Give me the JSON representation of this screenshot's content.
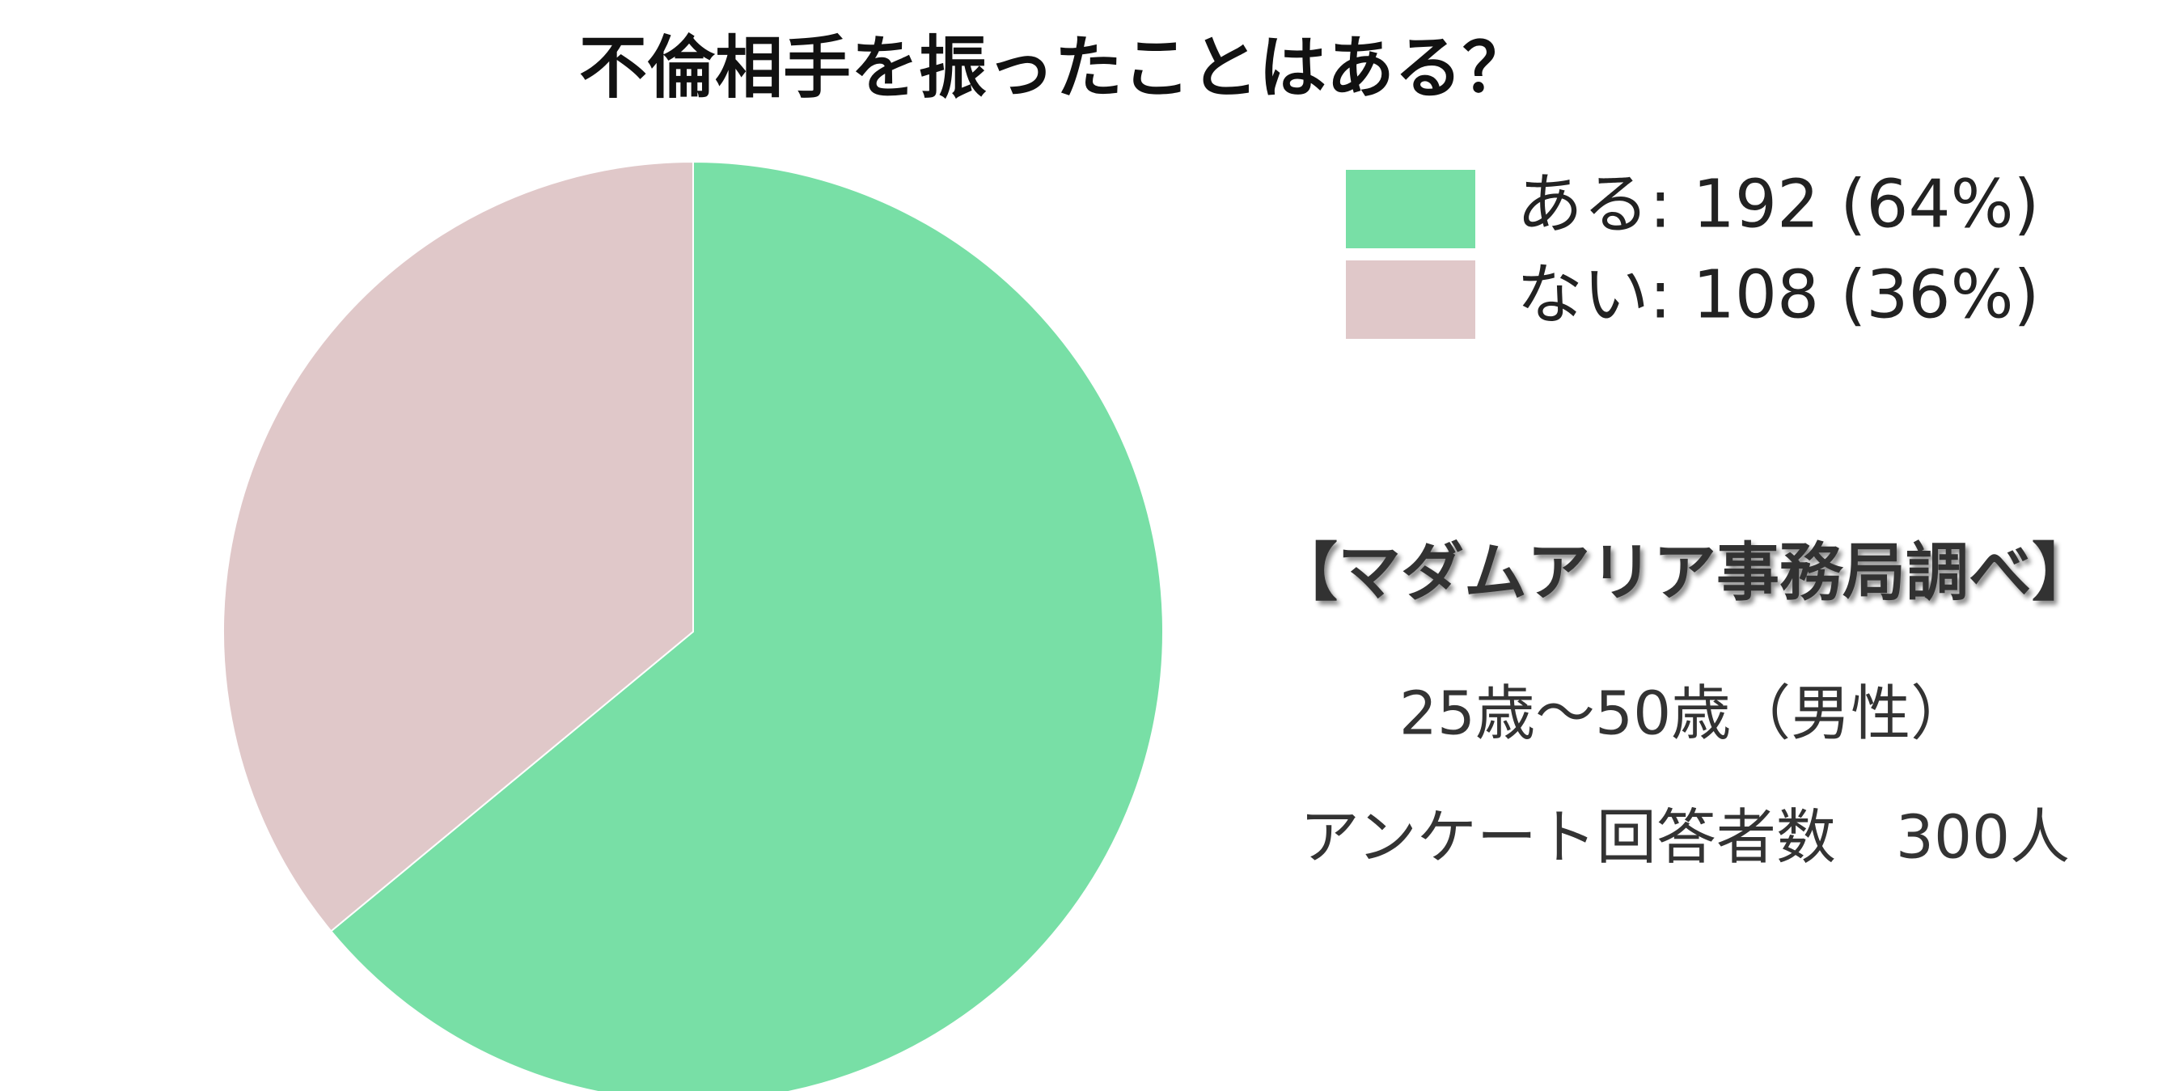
{
  "chart_data": {
    "type": "pie",
    "title": "不倫相手を振ったことはある？",
    "categories": [
      "ある: 192 (64%)",
      "ない: 108 (36%)"
    ],
    "values": [
      192,
      108
    ],
    "colors": [
      "#78dfa6",
      "#e0c8c9"
    ],
    "annotations": [
      "【マダムアリア事務局調べ】",
      "25歳～50歳（男性）",
      "アンケート回答者数　300人"
    ]
  }
}
